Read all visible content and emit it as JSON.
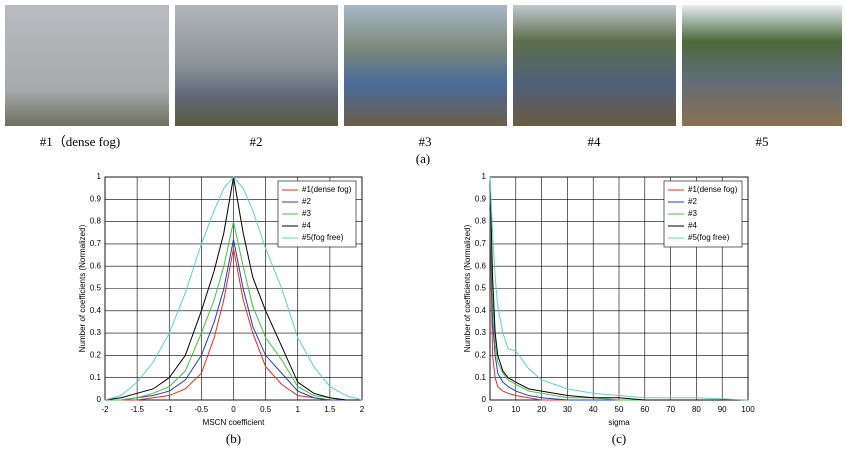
{
  "photos": [
    "#1（dense fog)",
    "#2",
    "#3",
    "#4",
    "#5"
  ],
  "caption": "(a)",
  "chart_data": [
    {
      "type": "line",
      "caption": "(b)",
      "xlabel": "MSCN coefficient",
      "ylabel": "Number of coefficients (Normalized)",
      "xlim": [
        -2,
        2
      ],
      "xticks": [
        -2,
        -1.5,
        -1,
        -0.5,
        0,
        0.5,
        1,
        1.5,
        2
      ],
      "ylim": [
        0,
        1
      ],
      "yticks": [
        0,
        0.1,
        0.2,
        0.3,
        0.4,
        0.5,
        0.6,
        0.7,
        0.8,
        0.9,
        1
      ],
      "grid": true,
      "legend": "upper right",
      "x": [
        -2,
        -1.75,
        -1.5,
        -1.25,
        -1,
        -0.75,
        -0.5,
        -0.3,
        -0.15,
        0,
        0.15,
        0.3,
        0.5,
        0.75,
        1,
        1.25,
        1.5,
        1.75,
        2
      ],
      "series": [
        {
          "name": "#1(dense fog)",
          "color": "#e03020",
          "values": [
            0,
            0,
            0,
            0.01,
            0.02,
            0.05,
            0.12,
            0.28,
            0.45,
            0.68,
            0.45,
            0.3,
            0.15,
            0.07,
            0.02,
            0.01,
            0,
            0,
            0
          ]
        },
        {
          "name": "#2",
          "color": "#2040c0",
          "values": [
            0,
            0,
            0.01,
            0.02,
            0.04,
            0.09,
            0.2,
            0.35,
            0.5,
            0.72,
            0.5,
            0.33,
            0.2,
            0.12,
            0.04,
            0.01,
            0,
            0,
            0
          ]
        },
        {
          "name": "#3",
          "color": "#40c040",
          "values": [
            0,
            0,
            0.01,
            0.03,
            0.06,
            0.13,
            0.3,
            0.45,
            0.6,
            0.8,
            0.6,
            0.42,
            0.28,
            0.18,
            0.06,
            0.02,
            0.01,
            0,
            0
          ]
        },
        {
          "name": "#4",
          "color": "#000000",
          "values": [
            0,
            0.01,
            0.03,
            0.05,
            0.1,
            0.2,
            0.4,
            0.58,
            0.75,
            1,
            0.75,
            0.55,
            0.4,
            0.24,
            0.08,
            0.03,
            0.01,
            0,
            0
          ]
        },
        {
          "name": "#5(fog free)",
          "color": "#60d0d0",
          "values": [
            0,
            0.02,
            0.08,
            0.17,
            0.3,
            0.48,
            0.7,
            0.85,
            0.95,
            1,
            0.95,
            0.85,
            0.68,
            0.5,
            0.28,
            0.15,
            0.06,
            0.02,
            0
          ]
        }
      ]
    },
    {
      "type": "line",
      "caption": "(c)",
      "xlabel": "sigma",
      "ylabel": "Number of coefficients (Normalized)",
      "xlim": [
        0,
        100
      ],
      "xticks": [
        0,
        10,
        20,
        30,
        40,
        50,
        60,
        70,
        80,
        90,
        100
      ],
      "ylim": [
        0,
        1
      ],
      "yticks": [
        0,
        0.1,
        0.2,
        0.3,
        0.4,
        0.5,
        0.6,
        0.7,
        0.8,
        0.9,
        1
      ],
      "grid": true,
      "legend": "upper right",
      "x": [
        0,
        1,
        2,
        3,
        5,
        7,
        10,
        15,
        20,
        30,
        40,
        50,
        60,
        80,
        100
      ],
      "series": [
        {
          "name": "#1(dense fog)",
          "color": "#e03020",
          "values": [
            0.85,
            0.2,
            0.1,
            0.06,
            0.04,
            0.03,
            0.02,
            0.01,
            0,
            0,
            0,
            0,
            0,
            0,
            0
          ]
        },
        {
          "name": "#2",
          "color": "#2040c0",
          "values": [
            0.9,
            0.35,
            0.2,
            0.12,
            0.08,
            0.06,
            0.04,
            0.02,
            0.01,
            0,
            0,
            0,
            0,
            0,
            0
          ]
        },
        {
          "name": "#3",
          "color": "#40c040",
          "values": [
            0.95,
            0.45,
            0.25,
            0.17,
            0.12,
            0.09,
            0.07,
            0.04,
            0.03,
            0.01,
            0.01,
            0,
            0,
            0,
            0
          ]
        },
        {
          "name": "#4",
          "color": "#000000",
          "values": [
            1,
            0.55,
            0.3,
            0.2,
            0.13,
            0.1,
            0.08,
            0.05,
            0.04,
            0.02,
            0.01,
            0.01,
            0,
            0,
            0
          ]
        },
        {
          "name": "#5(fog free)",
          "color": "#60d0d0",
          "values": [
            1,
            0.75,
            0.55,
            0.42,
            0.3,
            0.23,
            0.22,
            0.14,
            0.09,
            0.05,
            0.03,
            0.02,
            0.01,
            0.01,
            0
          ]
        }
      ]
    }
  ]
}
